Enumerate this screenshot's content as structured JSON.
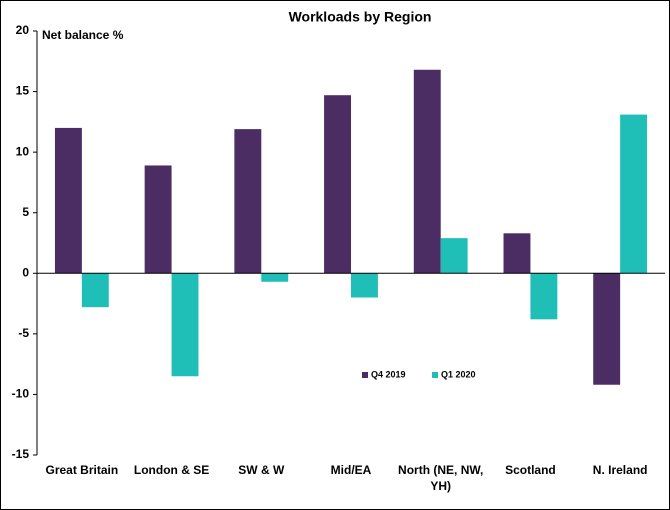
{
  "chart_data": {
    "type": "bar",
    "title": "Workloads by Region",
    "y_label": "Net balance %",
    "categories": [
      "Great Britain",
      "London & SE",
      "SW & W",
      "Mid/EA",
      "North (NE, NW, YH)",
      "Scotland",
      "N. Ireland"
    ],
    "series": [
      {
        "name": "Q4 2019",
        "color": "#4b2d63",
        "values": [
          12,
          8.9,
          11.9,
          14.7,
          16.8,
          3.3,
          -9.2
        ]
      },
      {
        "name": "Q1 2020",
        "color": "#1fbfb8",
        "values": [
          -2.8,
          -8.5,
          -0.7,
          -2,
          2.9,
          -3.8,
          13.1
        ]
      }
    ],
    "ylim": [
      -15,
      20
    ],
    "yticks": [
      -15,
      -10,
      -5,
      0,
      5,
      10,
      15,
      20
    ],
    "grid": false
  }
}
